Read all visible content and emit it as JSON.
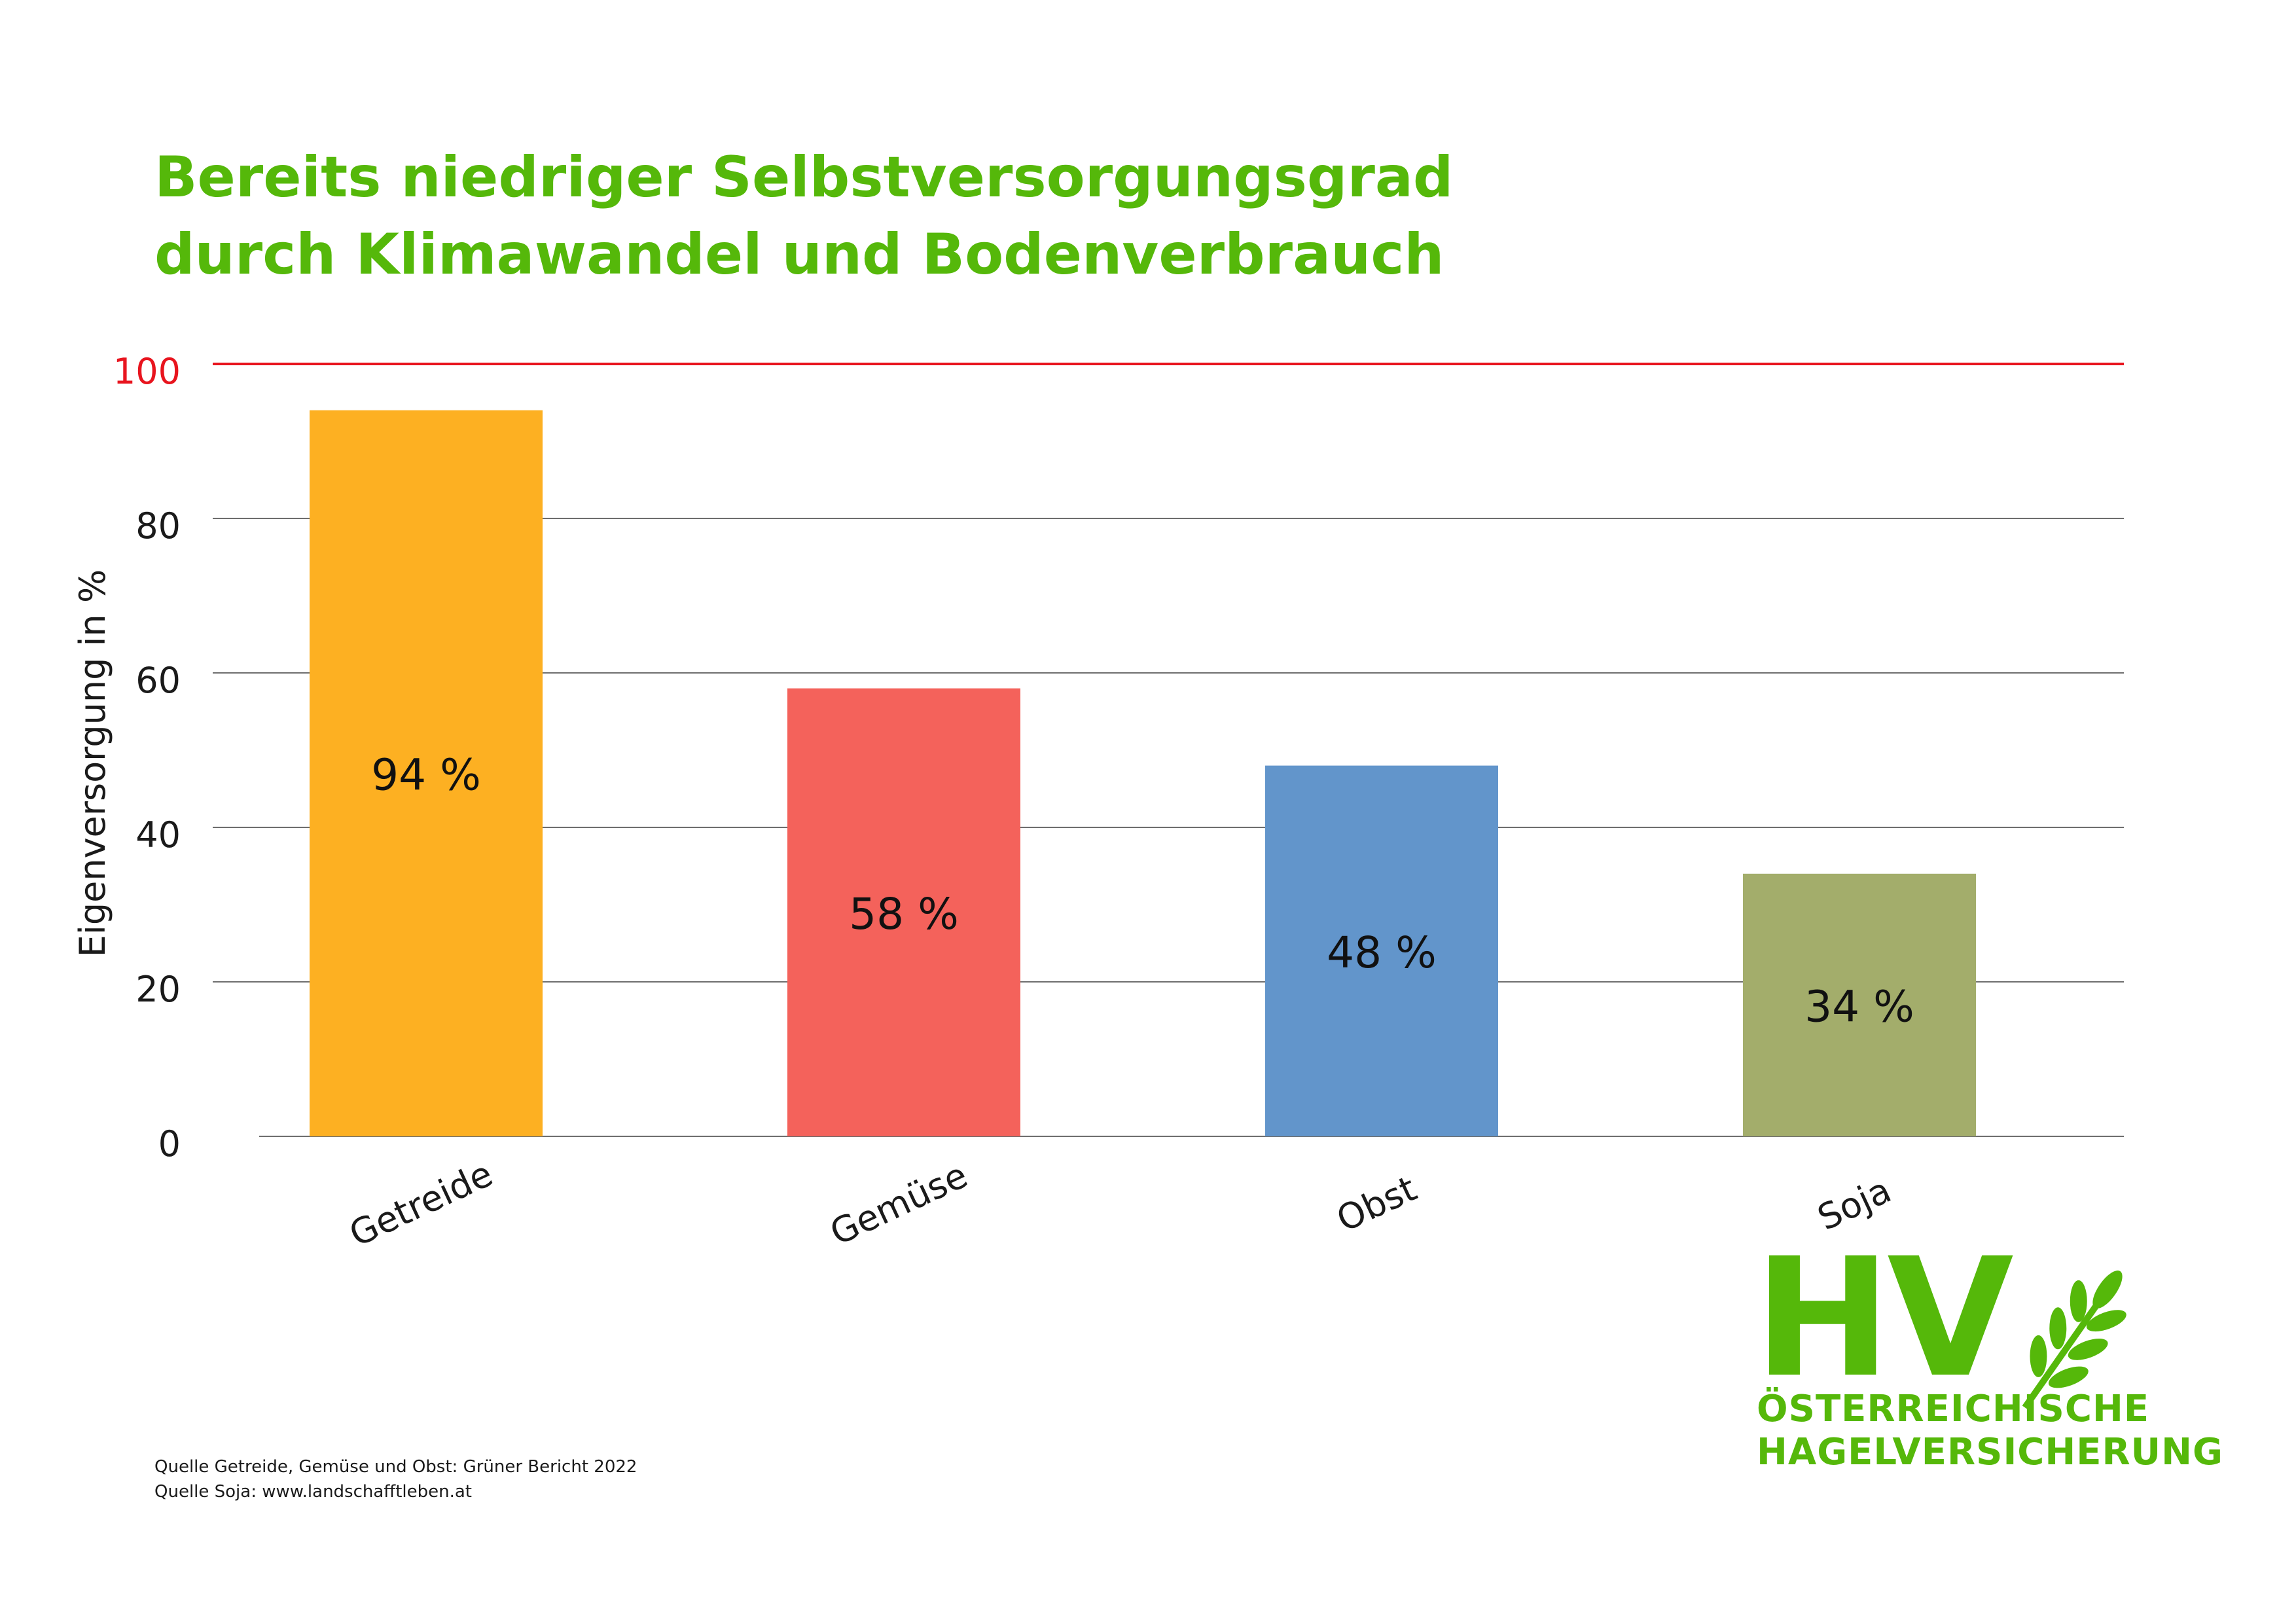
{
  "title": {
    "line1": "Bereits niedriger Selbstversorgungsgrad",
    "line2": "durch Klimawandel und Bodenverbrauch"
  },
  "colors": {
    "title": "#55b80a",
    "reference_line": "#e8141e",
    "grid": "#6e6e6e",
    "text": "#1a1a1a"
  },
  "chart_data": {
    "type": "bar",
    "title": "Bereits niedriger Selbstversorgungsgrad durch Klimawandel und Bodenverbrauch",
    "xlabel": "",
    "ylabel": "Eigenversorgung in %",
    "ylim": [
      0,
      100
    ],
    "yticks": [
      0,
      20,
      40,
      60,
      80,
      100
    ],
    "reference_line": 100,
    "grid": true,
    "categories": [
      "Getreide",
      "Gemüse",
      "Obst",
      "Soja"
    ],
    "values": [
      94,
      58,
      48,
      34
    ],
    "labels": [
      "94 %",
      "58 %",
      "48 %",
      "34 %"
    ],
    "bar_colors": [
      "#fdb022",
      "#f4625b",
      "#6295cb",
      "#a3ad6b"
    ]
  },
  "sources": {
    "line1": "Quelle Getreide, Gemüse und Obst: Grüner Bericht 2022",
    "line2": "Quelle Soja: www.landschafftleben.at"
  },
  "logo": {
    "mark": "HV",
    "line1": "ÖSTERREICHISCHE",
    "line2": "HAGELVERSICHERUNG"
  }
}
